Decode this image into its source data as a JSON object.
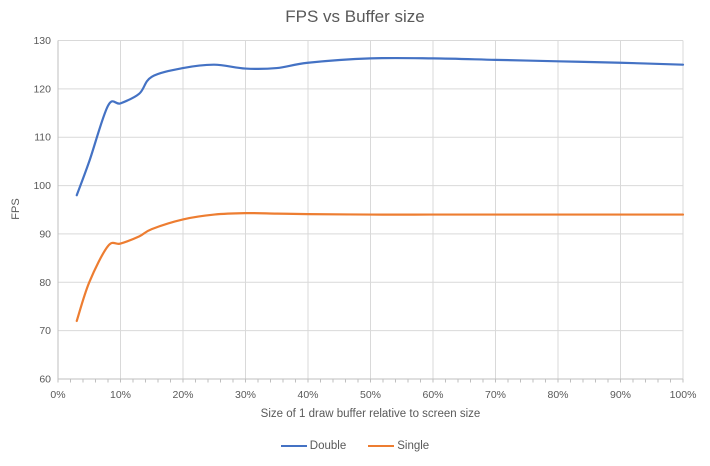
{
  "chart_data": {
    "type": "line",
    "title": "FPS vs Buffer size",
    "xlabel": "Size of 1 draw buffer relative to screen size",
    "ylabel": "FPS",
    "smooth": true,
    "grid": true,
    "legend_position": "bottom",
    "xlim": [
      0,
      100
    ],
    "ylim": [
      60,
      130
    ],
    "x_ticks": [
      "0%",
      "10%",
      "20%",
      "30%",
      "40%",
      "50%",
      "60%",
      "70%",
      "80%",
      "90%",
      "100%"
    ],
    "x_tick_values": [
      0,
      10,
      20,
      30,
      40,
      50,
      60,
      70,
      80,
      90,
      100
    ],
    "x_minor_tick_step": 2,
    "y_ticks": [
      "60",
      "70",
      "80",
      "90",
      "100",
      "110",
      "120",
      "130"
    ],
    "y_tick_values": [
      60,
      70,
      80,
      90,
      100,
      110,
      120,
      130
    ],
    "x": [
      3,
      5,
      8,
      10,
      13,
      15,
      20,
      25,
      30,
      35,
      40,
      50,
      60,
      70,
      80,
      90,
      100
    ],
    "series": [
      {
        "name": "Double",
        "color": "#4472C4",
        "values": [
          98,
          105,
          116.5,
          117,
          119,
          122.5,
          124.3,
          125,
          124.2,
          124.3,
          125.4,
          126.3,
          126.3,
          126,
          125.7,
          125.4,
          125
        ]
      },
      {
        "name": "Single",
        "color": "#ED7D31",
        "values": [
          72,
          80,
          87.5,
          88,
          89.5,
          91,
          93,
          94,
          94.3,
          94.2,
          94.1,
          94,
          94,
          94,
          94,
          94,
          94
        ]
      }
    ],
    "colors": {
      "text": "#595959",
      "gridline": "#D9D9D9",
      "axis_line": "#BFBFBF"
    }
  }
}
